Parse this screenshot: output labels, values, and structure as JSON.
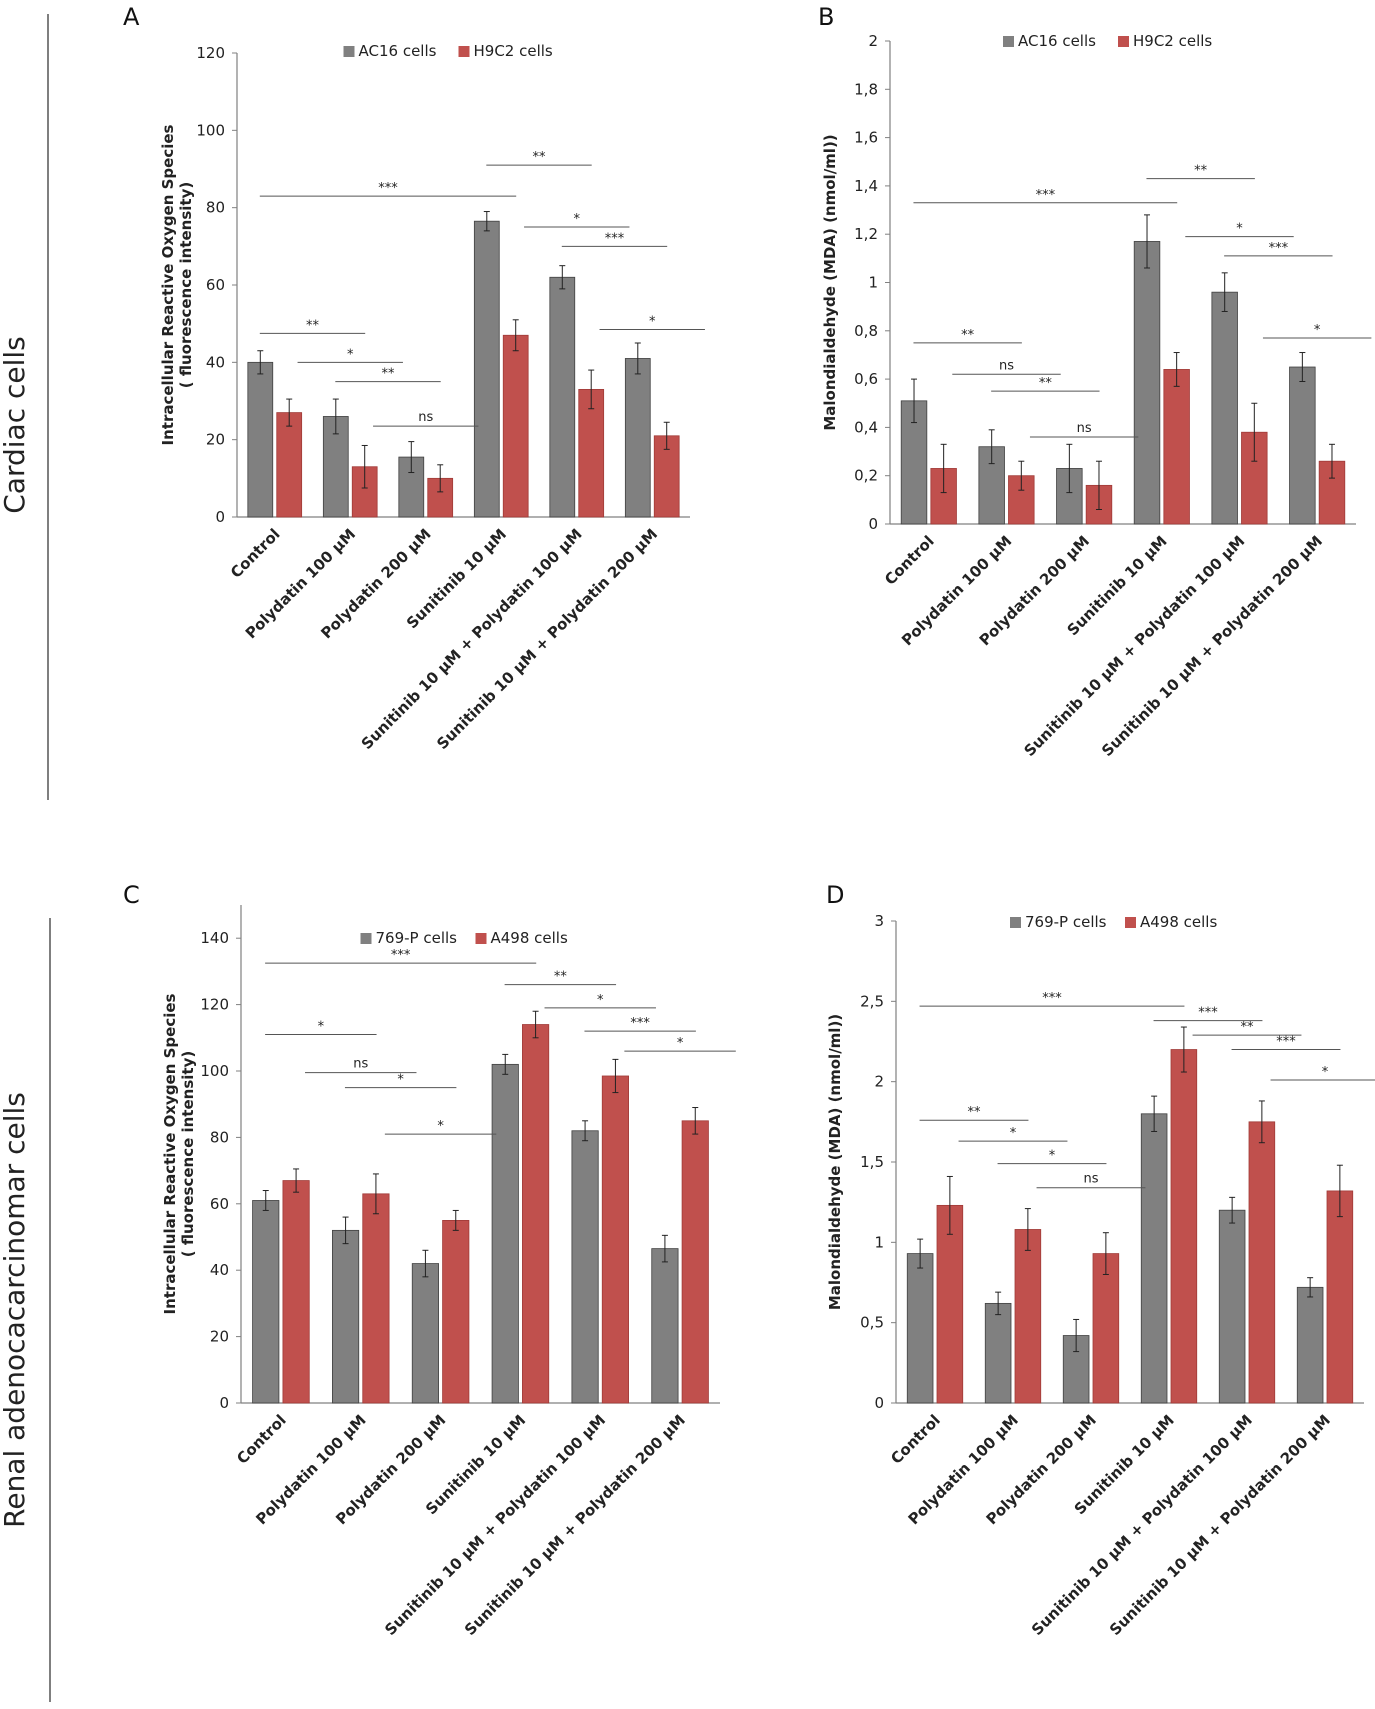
{
  "side_labels": [
    "Cardiac cells",
    "Renal adenocacarcinomar cells"
  ],
  "colors": {
    "gray": "#808080",
    "red": "#c0504d",
    "axis": "#808080"
  },
  "chart_data": [
    {
      "panel": "A",
      "type": "bar",
      "ylabel": [
        "Intracellular Reactive Oxygen Species",
        "( fluorescence intensity)"
      ],
      "ylim": [
        0,
        120
      ],
      "yticks": [
        "0",
        "20",
        "40",
        "60",
        "80",
        "100",
        "120"
      ],
      "tick_values": [
        0,
        20,
        40,
        60,
        80,
        100,
        120
      ],
      "categories": [
        "Control",
        "Polydatin 100 μM",
        "Polydatin 200 μM",
        "Sunitinib 10 μM",
        "Sunitinib 10 μM + Polydatin 100 μM",
        "Sunitinib 10 μM + Polydatin 200 μM"
      ],
      "series": [
        {
          "name": "AC16 cells",
          "values": [
            40,
            26,
            15.5,
            76.5,
            62,
            41
          ],
          "errors": [
            3,
            4.5,
            4,
            2.5,
            3,
            4
          ]
        },
        {
          "name": "H9C2 cells",
          "values": [
            27,
            13,
            10,
            47,
            33,
            21
          ],
          "errors": [
            3.5,
            5.5,
            3.5,
            4,
            5,
            3.5
          ]
        }
      ],
      "significance": [
        {
          "label": "***",
          "from": 0,
          "to": 3,
          "level": 83
        },
        {
          "label": "**",
          "from": 3,
          "to": 4,
          "level": 91
        },
        {
          "label": "*",
          "from": 3.5,
          "to": 4.5,
          "level": 75
        },
        {
          "label": "***",
          "from": 4,
          "to": 5,
          "level": 70
        },
        {
          "label": "*",
          "from": 4.5,
          "to": 5.5,
          "level": 48.5
        },
        {
          "label": "**",
          "from": 0,
          "to": 1,
          "level": 47.5
        },
        {
          "label": "*",
          "from": 0.5,
          "to": 1.5,
          "level": 40
        },
        {
          "label": "**",
          "from": 1,
          "to": 2,
          "level": 35
        },
        {
          "label": "ns",
          "from": 1.5,
          "to": 2.5,
          "level": 23.5
        }
      ]
    },
    {
      "panel": "B",
      "type": "bar",
      "ylabel": [
        "Malondialdehyde (MDA)  (nmol/ml))"
      ],
      "ylim": [
        0,
        2
      ],
      "yticks": [
        "0",
        "0,2",
        "0,4",
        "0,6",
        "0,8",
        "1",
        "1,2",
        "1,4",
        "1,6",
        "1,8",
        "2"
      ],
      "tick_values": [
        0,
        0.2,
        0.4,
        0.6,
        0.8,
        1,
        1.2,
        1.4,
        1.6,
        1.8,
        2
      ],
      "categories": [
        "Control",
        "Polydatin 100 μM",
        "Polydatin 200 μM",
        "Sunitinib 10 μM",
        "Sunitinib 10 μM + Polydatin 100 μM",
        "Sunitinib 10 μM + Polydatin 200 μM"
      ],
      "series": [
        {
          "name": "AC16 cells",
          "values": [
            0.51,
            0.32,
            0.23,
            1.17,
            0.96,
            0.65
          ],
          "errors": [
            0.09,
            0.07,
            0.1,
            0.11,
            0.08,
            0.06
          ]
        },
        {
          "name": "H9C2 cells",
          "values": [
            0.23,
            0.2,
            0.16,
            0.64,
            0.38,
            0.26
          ],
          "errors": [
            0.1,
            0.06,
            0.1,
            0.07,
            0.12,
            0.07
          ]
        }
      ],
      "significance": [
        {
          "label": "***",
          "from": 0,
          "to": 3,
          "level": 1.33
        },
        {
          "label": "**",
          "from": 3,
          "to": 4,
          "level": 1.43
        },
        {
          "label": "*",
          "from": 3.5,
          "to": 4.5,
          "level": 1.19
        },
        {
          "label": "***",
          "from": 4,
          "to": 5,
          "level": 1.11
        },
        {
          "label": "*",
          "from": 4.5,
          "to": 5.5,
          "level": 0.77
        },
        {
          "label": "**",
          "from": 0,
          "to": 1,
          "level": 0.75
        },
        {
          "label": "ns",
          "from": 0.5,
          "to": 1.5,
          "level": 0.62
        },
        {
          "label": "**",
          "from": 1,
          "to": 2,
          "level": 0.55
        },
        {
          "label": "ns",
          "from": 1.5,
          "to": 2.5,
          "level": 0.36
        }
      ]
    },
    {
      "panel": "C",
      "type": "bar",
      "ylabel": [
        "Intracellular Reactive Oxygen Species",
        "( fluorescence intensity)"
      ],
      "ylim": [
        0,
        150
      ],
      "yticks": [
        "0",
        "20",
        "40",
        "60",
        "80",
        "100",
        "120",
        "140"
      ],
      "tick_values": [
        0,
        20,
        40,
        60,
        80,
        100,
        120,
        140
      ],
      "categories": [
        "Control",
        "Polydatin 100 μM",
        "Polydatin 200 μM",
        "Sunitinib 10 μM",
        "Sunitinib 10 μM + Polydatin 100 μM",
        "Sunitinib 10 μM + Polydatin 200 μM"
      ],
      "series": [
        {
          "name": "769-P cells",
          "values": [
            61,
            52,
            42,
            102,
            82,
            46.5
          ],
          "errors": [
            3,
            4,
            4,
            3,
            3,
            4
          ]
        },
        {
          "name": "A498 cells",
          "values": [
            67,
            63,
            55,
            114,
            98.5,
            85
          ],
          "errors": [
            3.5,
            6,
            3,
            4,
            5,
            4
          ]
        }
      ],
      "significance": [
        {
          "label": "***",
          "from": 0,
          "to": 3,
          "level": 132.5
        },
        {
          "label": "**",
          "from": 3,
          "to": 4,
          "level": 126
        },
        {
          "label": "*",
          "from": 3.5,
          "to": 4.5,
          "level": 119
        },
        {
          "label": "***",
          "from": 4,
          "to": 5,
          "level": 112
        },
        {
          "label": "*",
          "from": 4.5,
          "to": 5.5,
          "level": 106
        },
        {
          "label": "*",
          "from": 0,
          "to": 1,
          "level": 111
        },
        {
          "label": "ns",
          "from": 0.5,
          "to": 1.5,
          "level": 99.5
        },
        {
          "label": "*",
          "from": 1,
          "to": 2,
          "level": 95
        },
        {
          "label": "*",
          "from": 1.5,
          "to": 2.5,
          "level": 81
        }
      ]
    },
    {
      "panel": "D",
      "type": "bar",
      "ylabel": [
        "Malondialdehyde (MDA)  (nmol/ml))"
      ],
      "ylim": [
        0,
        3
      ],
      "yticks": [
        "0",
        "0,5",
        "1",
        "1,5",
        "2",
        "2,5",
        "3"
      ],
      "tick_values": [
        0,
        0.5,
        1,
        1.5,
        2,
        2.5,
        3
      ],
      "categories": [
        "Control",
        "Polydatin 100 μM",
        "Polydatin 200 μM",
        "Sunitinib 10 μM",
        "Sunitinib 10 μM + Polydatin 100 μM",
        "Sunitinib 10 μM + Polydatin 200 μM"
      ],
      "series": [
        {
          "name": "769-P cells",
          "values": [
            0.93,
            0.62,
            0.42,
            1.8,
            1.2,
            0.72
          ],
          "errors": [
            0.09,
            0.07,
            0.1,
            0.11,
            0.08,
            0.06
          ]
        },
        {
          "name": "A498 cells",
          "values": [
            1.23,
            1.08,
            0.93,
            2.2,
            1.75,
            1.32
          ],
          "errors": [
            0.18,
            0.13,
            0.13,
            0.14,
            0.13,
            0.16
          ]
        }
      ],
      "significance": [
        {
          "label": "***",
          "from": 0,
          "to": 3,
          "level": 2.47
        },
        {
          "label": "***",
          "from": 3,
          "to": 4,
          "level": 2.38
        },
        {
          "label": "**",
          "from": 3.5,
          "to": 4.5,
          "level": 2.29
        },
        {
          "label": "***",
          "from": 4,
          "to": 5,
          "level": 2.2
        },
        {
          "label": "*",
          "from": 4.5,
          "to": 5.5,
          "level": 2.01
        },
        {
          "label": "**",
          "from": 0,
          "to": 1,
          "level": 1.76
        },
        {
          "label": "*",
          "from": 0.5,
          "to": 1.5,
          "level": 1.63
        },
        {
          "label": "*",
          "from": 1,
          "to": 2,
          "level": 1.49
        },
        {
          "label": "ns",
          "from": 1.5,
          "to": 2.5,
          "level": 1.34
        }
      ]
    }
  ]
}
